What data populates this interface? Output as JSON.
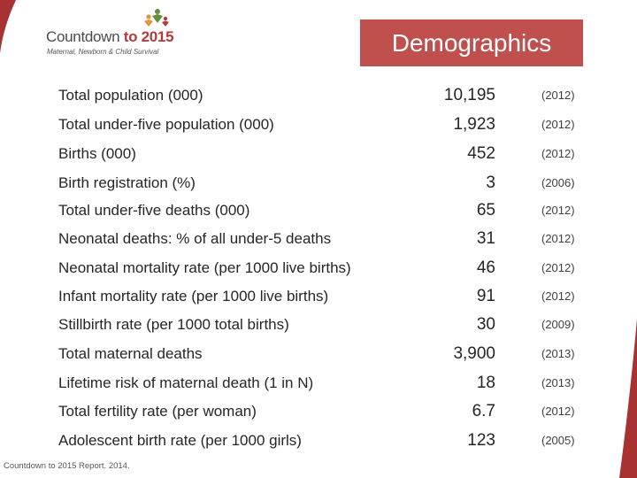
{
  "logo": {
    "title_main": "Countdown",
    "title_accent": "to 2015",
    "subtitle": "Maternal, Newborn & Child Survival"
  },
  "banner": {
    "title": "Demographics"
  },
  "indicators": [
    {
      "label": "Total population (000)",
      "value": "10,195",
      "year": "(2012)"
    },
    {
      "label": "Total under-five population (000)",
      "value": "1,923",
      "year": "(2012)"
    },
    {
      "label": "Births (000)",
      "value": "452",
      "year": "(2012)"
    },
    {
      "label": "Birth registration (%)",
      "value": "3",
      "year": "(2006)"
    },
    {
      "label": "Total under-five deaths (000)",
      "value": "65",
      "year": "(2012)"
    },
    {
      "label": "Neonatal deaths: % of all under-5 deaths",
      "value": "31",
      "year": "(2012)"
    },
    {
      "label": "Neonatal mortality rate (per 1000 live births)",
      "value": "46",
      "year": "(2012)"
    },
    {
      "label": "Infant mortality rate (per 1000 live births)",
      "value": "91",
      "year": "(2012)"
    },
    {
      "label": "Stillbirth rate (per 1000 total births)",
      "value": "30",
      "year": "(2009)"
    },
    {
      "label": "Total maternal deaths",
      "value": "3,900",
      "year": "(2013)"
    },
    {
      "label": "Lifetime risk of maternal death (1 in N)",
      "value": "18",
      "year": "(2013)"
    },
    {
      "label": "Total fertility rate (per woman)",
      "value": "6.7",
      "year": "(2012)"
    },
    {
      "label": "Adolescent birth rate (per 1000 girls)",
      "value": "123",
      "year": "(2005)"
    }
  ],
  "footer": {
    "source": "Countdown to 2015 Report. 2014."
  },
  "colors": {
    "accent": "#c0504d",
    "text": "#262626"
  }
}
